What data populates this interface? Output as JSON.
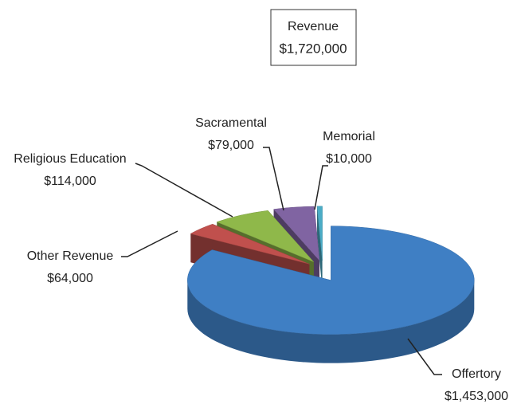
{
  "chart_data": {
    "type": "pie3d",
    "title": "Revenue",
    "subtitle": "$1,720,000",
    "categories": [
      "Offertory",
      "Other Revenue",
      "Religious Education",
      "Sacramental",
      "Memorial"
    ],
    "values": [
      1453000,
      64000,
      114000,
      79000,
      10000
    ],
    "value_labels": [
      "$1,453,000",
      "$64,000",
      "$114,000",
      "$79,000",
      "$10,000"
    ],
    "colors": [
      "#3f7fc4",
      "#c0504d",
      "#8fb84a",
      "#8064a2",
      "#4bacc6"
    ]
  }
}
